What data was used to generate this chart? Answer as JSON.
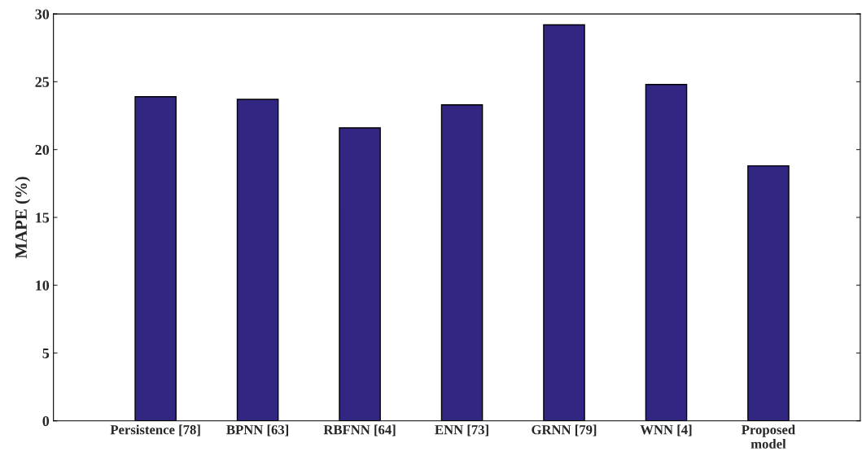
{
  "chart_data": {
    "type": "bar",
    "ylabel": "MAPE (%)",
    "categories": [
      "Persistence [78]",
      "BPNN [63]",
      "RBFNN [64]",
      "ENN [73]",
      "GRNN [79]",
      "WNN [4]",
      "Proposed\nmodel"
    ],
    "values": [
      23.9,
      23.7,
      21.6,
      23.3,
      29.2,
      24.8,
      18.8
    ],
    "color": "#312783",
    "ylim": [
      0,
      30
    ],
    "yticks": [
      0,
      5,
      10,
      15,
      20,
      25,
      30
    ],
    "grid": false,
    "legend": false
  }
}
